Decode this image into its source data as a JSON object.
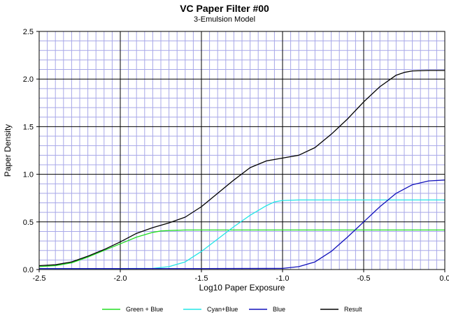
{
  "chart_data": {
    "type": "line",
    "title": "VC Paper Filter #00",
    "subtitle": "3-Emulsion Model",
    "xlabel": "Log10 Paper Exposure",
    "ylabel": "Paper Density",
    "xlim": [
      -2.5,
      0.0
    ],
    "ylim": [
      0.0,
      2.5
    ],
    "x_ticks": [
      "-2.5",
      "-2.0",
      "-1.5",
      "-1.0",
      "-0.5",
      "0.0"
    ],
    "y_ticks": [
      "0.0",
      "0.5",
      "1.0",
      "1.5",
      "2.0",
      "2.5"
    ],
    "grid": true,
    "legend_position": "bottom",
    "series": [
      {
        "name": "Green + Blue",
        "color": "#22dd22",
        "x": [
          -2.5,
          -2.4,
          -2.3,
          -2.2,
          -2.1,
          -2.0,
          -1.9,
          -1.8,
          -1.75,
          -1.7,
          -1.6,
          -1.5,
          -1.0,
          -0.5,
          0.0
        ],
        "y": [
          0.03,
          0.04,
          0.07,
          0.13,
          0.2,
          0.27,
          0.34,
          0.39,
          0.405,
          0.41,
          0.415,
          0.415,
          0.415,
          0.415,
          0.415
        ]
      },
      {
        "name": "Cyan+Blue",
        "color": "#22e5e5",
        "x": [
          -2.5,
          -2.0,
          -1.8,
          -1.7,
          -1.6,
          -1.5,
          -1.4,
          -1.3,
          -1.2,
          -1.1,
          -1.05,
          -1.0,
          -0.9,
          -0.5,
          0.0
        ],
        "y": [
          0.01,
          0.01,
          0.012,
          0.03,
          0.08,
          0.19,
          0.32,
          0.45,
          0.57,
          0.67,
          0.71,
          0.725,
          0.73,
          0.73,
          0.73
        ]
      },
      {
        "name": "Blue",
        "color": "#1010bb",
        "x": [
          -2.5,
          -1.5,
          -1.0,
          -0.9,
          -0.8,
          -0.7,
          -0.6,
          -0.5,
          -0.4,
          -0.3,
          -0.2,
          -0.1,
          0.0
        ],
        "y": [
          0.01,
          0.01,
          0.012,
          0.03,
          0.08,
          0.19,
          0.34,
          0.5,
          0.66,
          0.8,
          0.89,
          0.93,
          0.94
        ]
      },
      {
        "name": "Result",
        "color": "#000000",
        "x": [
          -2.5,
          -2.4,
          -2.3,
          -2.2,
          -2.1,
          -2.0,
          -1.9,
          -1.8,
          -1.7,
          -1.6,
          -1.5,
          -1.4,
          -1.3,
          -1.2,
          -1.1,
          -1.0,
          -0.9,
          -0.8,
          -0.7,
          -0.6,
          -0.5,
          -0.4,
          -0.3,
          -0.25,
          -0.2,
          -0.1,
          0.0
        ],
        "y": [
          0.04,
          0.05,
          0.08,
          0.14,
          0.21,
          0.29,
          0.38,
          0.44,
          0.49,
          0.55,
          0.66,
          0.8,
          0.94,
          1.07,
          1.14,
          1.17,
          1.2,
          1.28,
          1.42,
          1.58,
          1.76,
          1.92,
          2.04,
          2.07,
          2.085,
          2.09,
          2.09
        ]
      }
    ]
  }
}
